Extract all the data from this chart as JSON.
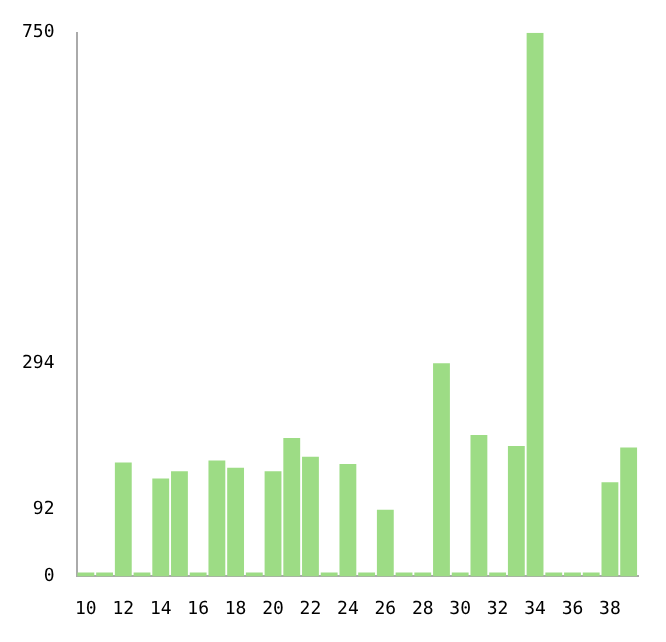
{
  "chart_data": {
    "type": "bar",
    "categories": [
      "10",
      null,
      "12",
      null,
      "14",
      null,
      "16",
      null,
      "18",
      null,
      "20",
      null,
      "22",
      null,
      "24",
      null,
      "26",
      null,
      "28",
      null,
      "30",
      null,
      "32",
      null,
      "34",
      null,
      "36",
      null,
      "38",
      null
    ],
    "values": [
      0,
      0,
      157,
      0,
      135,
      145,
      0,
      160,
      150,
      0,
      145,
      191,
      165,
      0,
      155,
      0,
      92,
      0,
      0,
      294,
      0,
      195,
      0,
      180,
      750,
      0,
      0,
      0,
      130,
      178
    ],
    "color": "#9ddc85",
    "ylim": [
      0,
      750
    ],
    "yticks": [
      0,
      92,
      294,
      750
    ],
    "grid": false,
    "legend": false
  }
}
